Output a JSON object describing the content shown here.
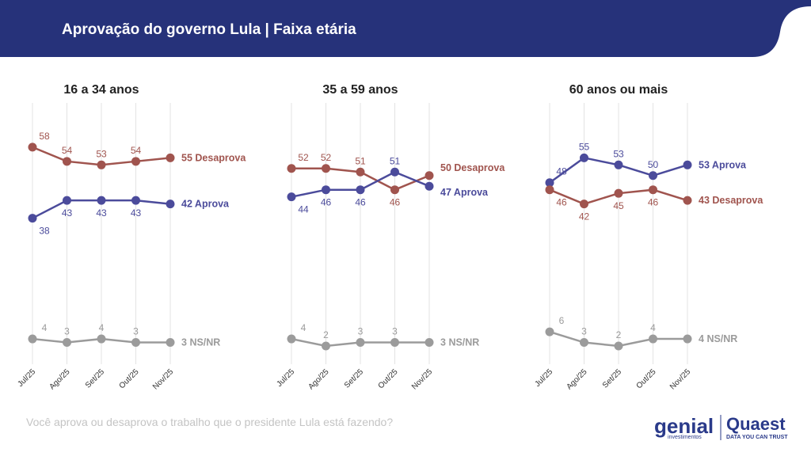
{
  "header": {
    "title": "Aprovação do governo Lula | Faixa etária"
  },
  "footer": {
    "question": "Você aprova ou desaprova o trabalho que o presidente Lula está fazendo?",
    "logo_genial": "genial",
    "logo_genial_sub": "investimentos",
    "logo_quaest": "Quaest",
    "logo_quaest_sub": "DATA YOU CAN TRUST"
  },
  "chart_data": [
    {
      "type": "line",
      "title": "16 a 34 anos",
      "categories": [
        "Jul/25",
        "Ago/25",
        "Set/25",
        "Out/25",
        "Nov/25"
      ],
      "ylim": [
        0,
        66
      ],
      "grid": true,
      "series": [
        {
          "name": "Desaprova",
          "color": "#a0544e",
          "values": [
            58,
            54,
            53,
            54,
            55
          ]
        },
        {
          "name": "Aprova",
          "color": "#4b4b9b",
          "values": [
            38,
            43,
            43,
            43,
            42
          ]
        },
        {
          "name": "NS/NR",
          "color": "#9b9b9b",
          "values": [
            4,
            3,
            4,
            3,
            3
          ]
        }
      ]
    },
    {
      "type": "line",
      "title": "35 a 59 anos",
      "categories": [
        "Jul/25",
        "Ago/25",
        "Set/25",
        "Out/25",
        "Nov/25"
      ],
      "ylim": [
        0,
        66
      ],
      "grid": true,
      "series": [
        {
          "name": "Desaprova",
          "color": "#a0544e",
          "values": [
            52,
            52,
            51,
            46,
            50
          ]
        },
        {
          "name": "Aprova",
          "color": "#4b4b9b",
          "values": [
            44,
            46,
            46,
            51,
            47
          ]
        },
        {
          "name": "NS/NR",
          "color": "#9b9b9b",
          "values": [
            4,
            2,
            3,
            3,
            3
          ]
        }
      ]
    },
    {
      "type": "line",
      "title": "60 anos ou mais",
      "categories": [
        "Jul/25",
        "Ago/25",
        "Set/25",
        "Out/25",
        "Nov/25"
      ],
      "ylim": [
        0,
        66
      ],
      "grid": true,
      "series": [
        {
          "name": "Aprova",
          "color": "#4b4b9b",
          "values": [
            48,
            55,
            53,
            50,
            53
          ]
        },
        {
          "name": "Desaprova",
          "color": "#a0544e",
          "values": [
            46,
            42,
            45,
            46,
            43
          ]
        },
        {
          "name": "NS/NR",
          "color": "#9b9b9b",
          "values": [
            6,
            3,
            2,
            4,
            4
          ]
        }
      ]
    }
  ]
}
